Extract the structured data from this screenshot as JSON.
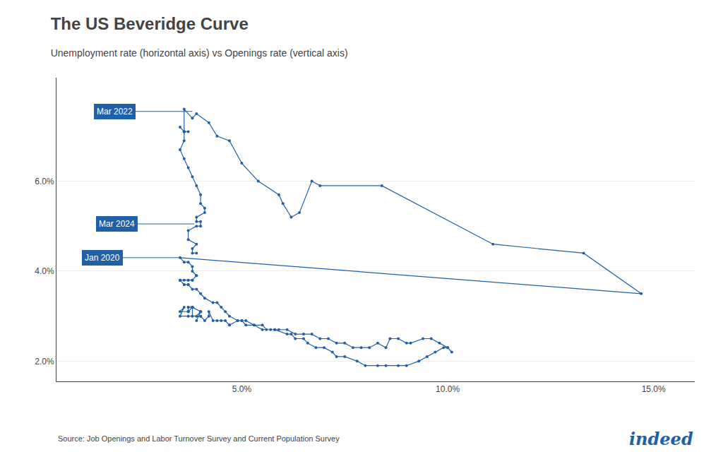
{
  "chart_data": {
    "type": "line",
    "title": "The US Beveridge Curve",
    "subtitle": "Unemployment rate (horizontal axis) vs Openings rate (vertical axis)",
    "source": "Source: Job Openings and Labor Turnover Survey and Current Population Survey",
    "logo": "indeed",
    "color": "#2060a8",
    "marker": "circle",
    "grid": "y",
    "xlim": [
      0.5,
      16.0
    ],
    "ylim": [
      1.55,
      8.3
    ],
    "xticks": [
      {
        "value": 5.0,
        "label": "5.0%"
      },
      {
        "value": 10.0,
        "label": "10.0%"
      },
      {
        "value": 15.0,
        "label": "15.0%"
      }
    ],
    "yticks": [
      {
        "value": 2.0,
        "label": "2.0%"
      },
      {
        "value": 4.0,
        "label": "4.0%"
      },
      {
        "value": 6.0,
        "label": "6.0%"
      }
    ],
    "annotations": [
      {
        "text": "Mar 2022",
        "x": 3.8,
        "y": 7.55,
        "color": "#2060a8"
      },
      {
        "text": "Mar 2024",
        "x": 3.85,
        "y": 5.05,
        "color": "#2060a8"
      },
      {
        "text": "Jan 2020",
        "x": 3.5,
        "y": 4.3,
        "color": "#2060a8"
      }
    ],
    "x": [
      3.9,
      4.0,
      4.0,
      3.8,
      3.8,
      4.0,
      3.9,
      3.7,
      3.5,
      3.6,
      3.5,
      3.7,
      3.7,
      3.8,
      3.8,
      3.7,
      3.7,
      3.7,
      3.8,
      3.8,
      4.0,
      4.0,
      4.1,
      4.2,
      4.2,
      4.3,
      4.4,
      4.5,
      4.6,
      4.7,
      4.7,
      4.9,
      5.0,
      5.1,
      5.3,
      5.5,
      5.7,
      5.8,
      6.1,
      6.2,
      6.3,
      6.5,
      6.6,
      6.8,
      7.0,
      7.2,
      7.3,
      7.5,
      7.8,
      8.0,
      8.3,
      8.5,
      8.8,
      9.0,
      9.3,
      9.5,
      9.7,
      9.9,
      10.0,
      10.1,
      10.0,
      9.8,
      9.6,
      9.4,
      9.1,
      9.0,
      8.8,
      8.6,
      8.5,
      8.3,
      8.1,
      7.9,
      7.7,
      7.5,
      7.3,
      7.1,
      6.9,
      6.7,
      6.5,
      6.3,
      6.1,
      5.9,
      5.8,
      5.6,
      5.5,
      5.3,
      5.1,
      5.0,
      4.9,
      4.7,
      4.6,
      4.5,
      4.4,
      4.3,
      4.1,
      4.0,
      3.9,
      3.8,
      3.7,
      3.7,
      3.6,
      3.6,
      3.5,
      3.5,
      3.5,
      3.6,
      3.7,
      3.7,
      3.8,
      3.8,
      3.9,
      3.9,
      3.8,
      3.8,
      3.7,
      3.6,
      3.5,
      14.7,
      13.3,
      11.1,
      8.4,
      6.9,
      6.7,
      6.4,
      6.2,
      6.0,
      5.9,
      5.4,
      5.0,
      4.7,
      4.4,
      4.2,
      3.9,
      3.8,
      3.6,
      3.6,
      3.5,
      3.6,
      3.7,
      3.6,
      3.6,
      3.5,
      3.6,
      3.7,
      3.8,
      3.9,
      4.0,
      4.0,
      4.1,
      4.1,
      3.9,
      3.9,
      4.0,
      4.0,
      3.9,
      3.7,
      3.7,
      3.9,
      3.8,
      3.8,
      3.9
    ],
    "values": [
      2.9,
      3.1,
      3.1,
      3.2,
      3.2,
      3.1,
      3.0,
      3.0,
      3.0,
      3.2,
      3.1,
      3.1,
      3.2,
      3.2,
      3.2,
      3.2,
      3.1,
      3.1,
      3.2,
      3.0,
      3.0,
      3.0,
      2.9,
      3.0,
      3.1,
      2.9,
      2.9,
      2.9,
      2.9,
      2.8,
      2.8,
      2.9,
      2.9,
      2.8,
      2.8,
      2.7,
      2.7,
      2.7,
      2.6,
      2.6,
      2.5,
      2.5,
      2.4,
      2.3,
      2.3,
      2.2,
      2.1,
      2.1,
      2.0,
      1.9,
      1.9,
      1.9,
      1.9,
      1.9,
      2.0,
      2.1,
      2.2,
      2.3,
      2.3,
      2.2,
      2.3,
      2.4,
      2.5,
      2.5,
      2.4,
      2.4,
      2.5,
      2.5,
      2.3,
      2.4,
      2.3,
      2.3,
      2.3,
      2.4,
      2.4,
      2.5,
      2.5,
      2.6,
      2.6,
      2.6,
      2.7,
      2.7,
      2.7,
      2.7,
      2.8,
      2.8,
      2.9,
      2.9,
      2.9,
      3.0,
      3.1,
      3.2,
      3.3,
      3.3,
      3.4,
      3.5,
      3.6,
      3.6,
      3.7,
      3.7,
      3.7,
      3.7,
      3.8,
      3.8,
      3.8,
      3.8,
      3.8,
      3.8,
      3.8,
      3.8,
      3.9,
      3.9,
      4.0,
      4.1,
      4.2,
      4.2,
      4.3,
      3.5,
      4.4,
      4.6,
      5.9,
      5.9,
      6.0,
      5.3,
      5.2,
      5.5,
      5.7,
      6.0,
      6.4,
      6.9,
      7.0,
      7.3,
      7.5,
      7.4,
      7.6,
      7.1,
      7.2,
      7.1,
      7.1,
      7.1,
      6.9,
      6.7,
      6.5,
      6.3,
      6.1,
      5.9,
      5.7,
      5.5,
      5.4,
      5.3,
      5.2,
      5.1,
      5.1,
      5.0,
      5.0,
      4.9,
      4.7,
      4.6,
      4.5,
      4.4,
      4.4
    ]
  }
}
